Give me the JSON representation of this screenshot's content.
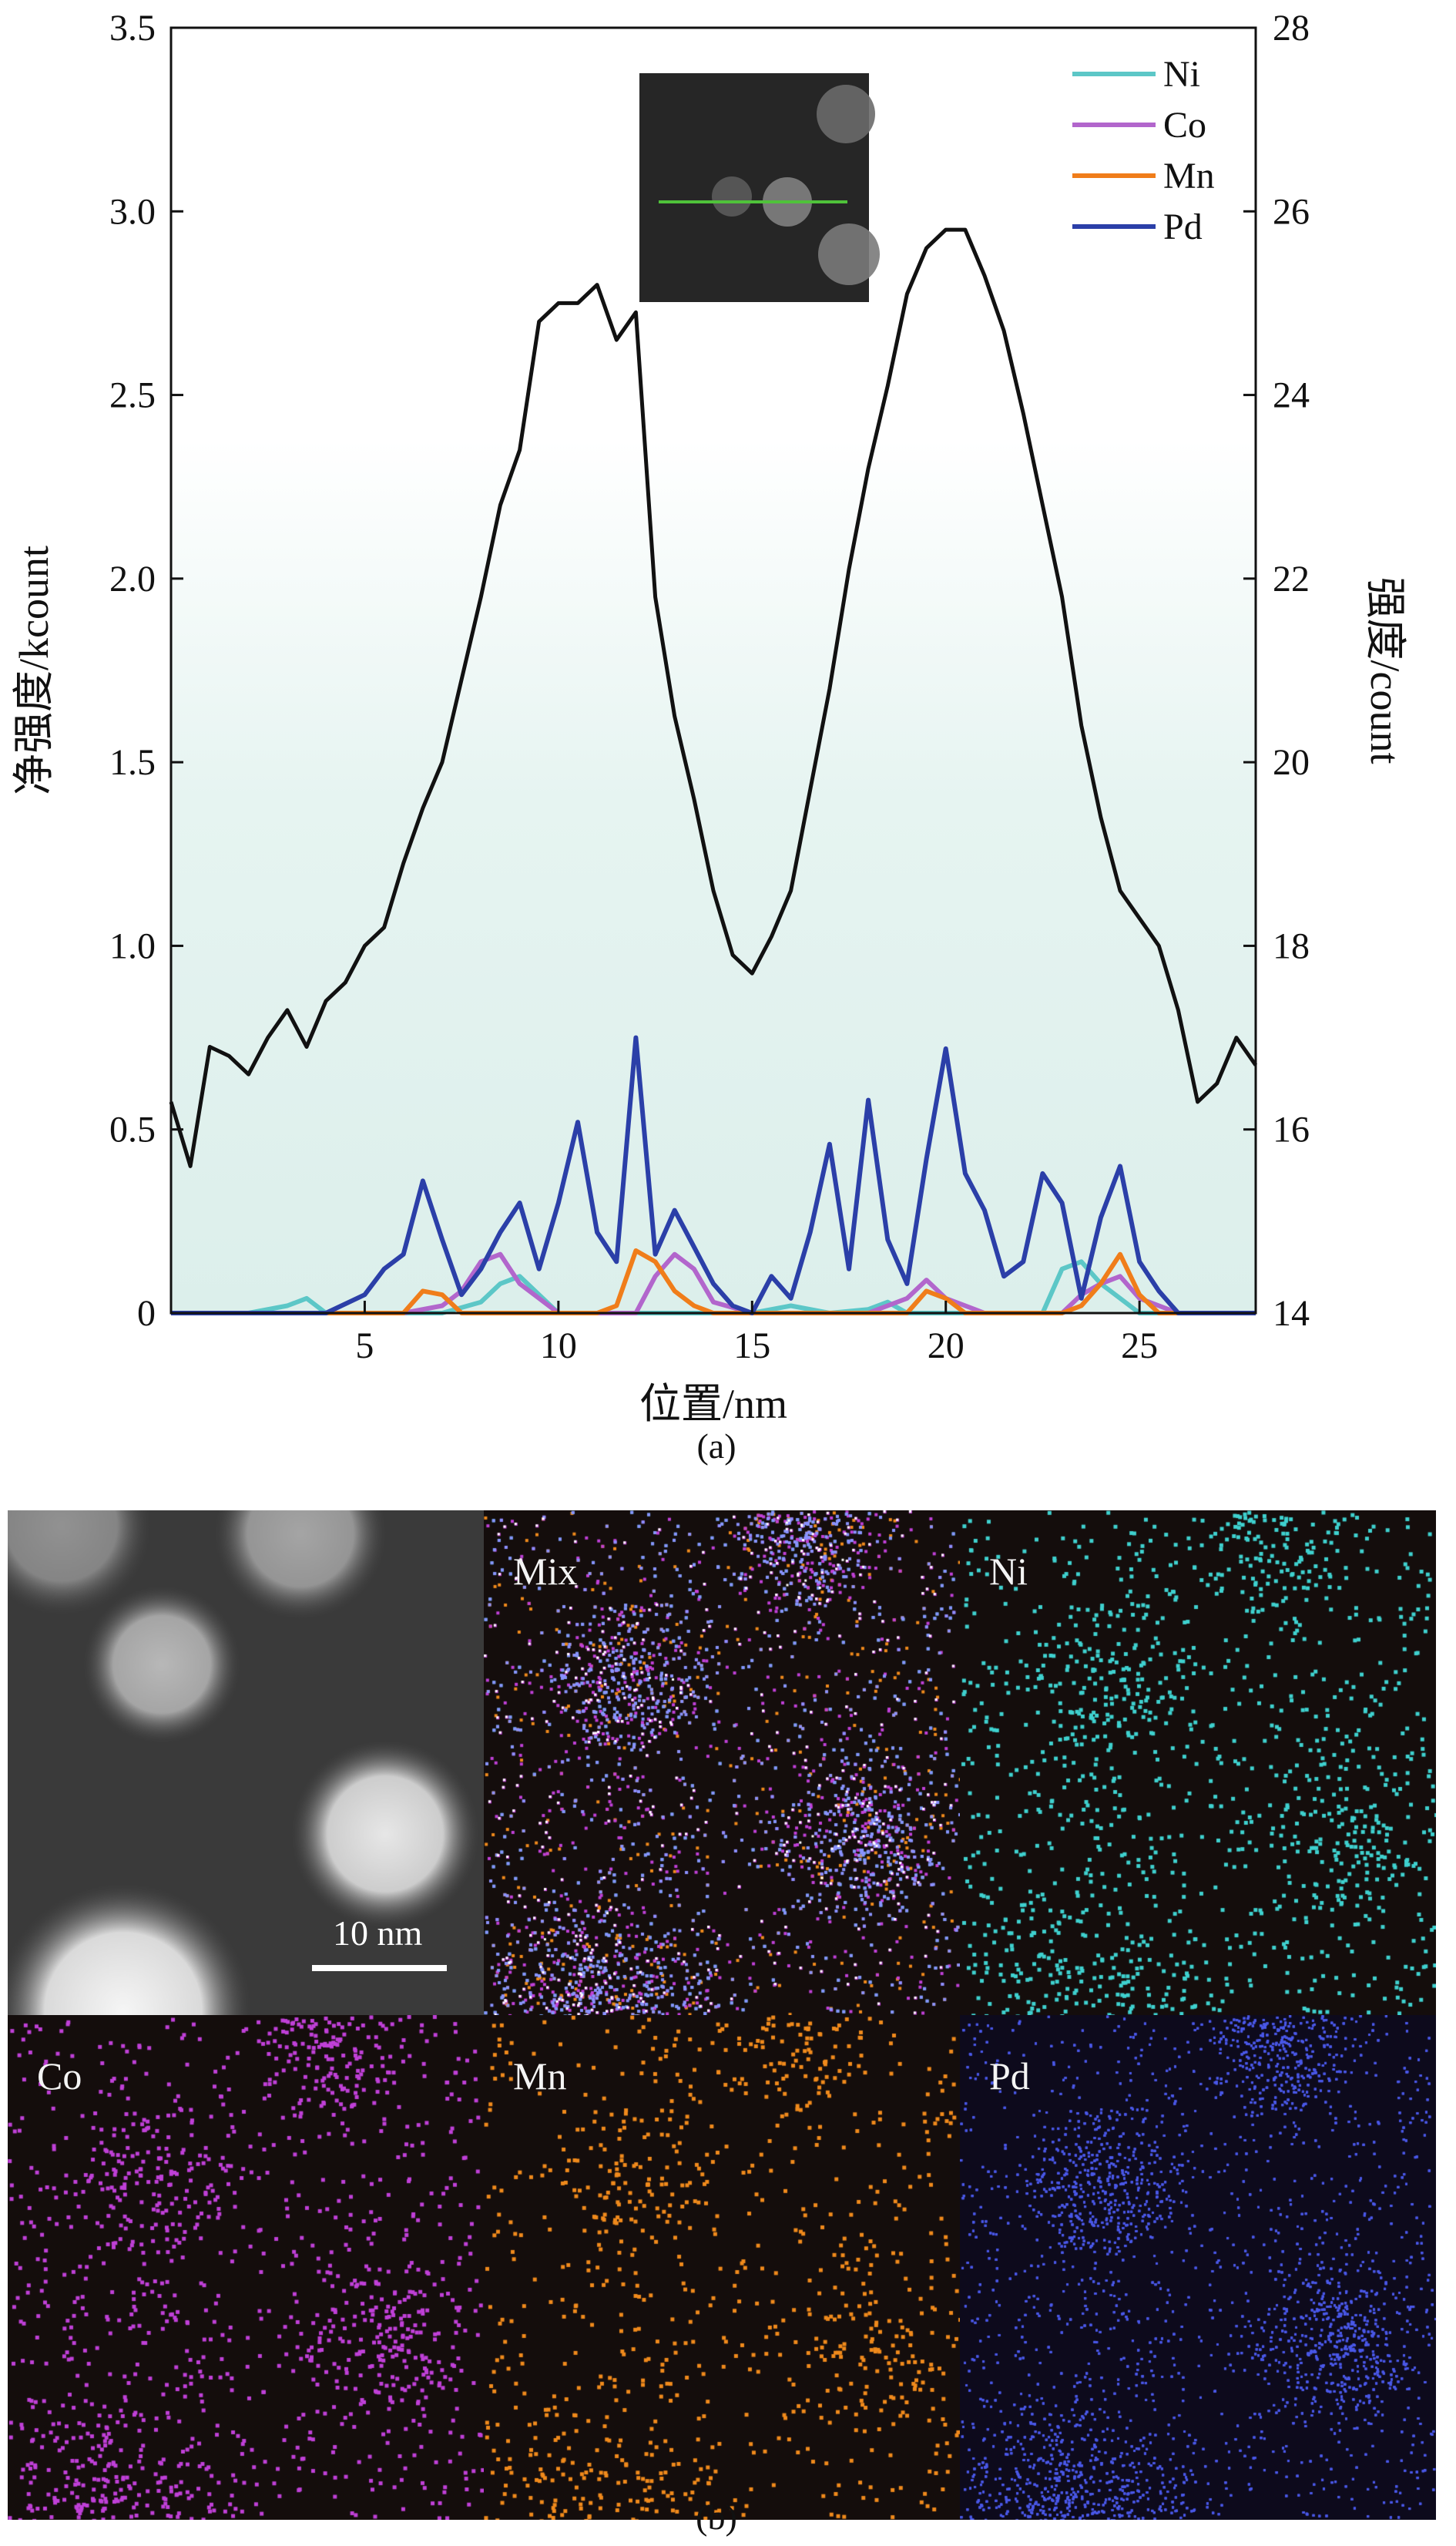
{
  "chart_data": {
    "type": "line",
    "xlabel": "位置/nm",
    "ylabel_left": "净强度/kcount",
    "ylabel_right": "强度/count",
    "xlim": [
      0,
      28
    ],
    "ylim_left": [
      0,
      3.5
    ],
    "ylim_right": [
      14,
      28
    ],
    "x_ticks": [
      "5",
      "10",
      "15",
      "20",
      "25"
    ],
    "x_tick_values": [
      5,
      10,
      15,
      20,
      25
    ],
    "y_ticks_left": [
      "0",
      "0.5",
      "1.0",
      "1.5",
      "2.0",
      "2.5",
      "3.0",
      "3.5"
    ],
    "y_tick_values_left": [
      0,
      0.5,
      1.0,
      1.5,
      2.0,
      2.5,
      3.0,
      3.5
    ],
    "y_ticks_right": [
      "14",
      "16",
      "18",
      "20",
      "22",
      "24",
      "26",
      "28"
    ],
    "y_tick_values_right": [
      14,
      16,
      18,
      20,
      22,
      24,
      26,
      28
    ],
    "legend_position": "top-right",
    "intensity_series": {
      "axis": "right",
      "color": "#111111",
      "x": [
        0,
        0.5,
        1,
        1.5,
        2,
        2.5,
        3,
        3.5,
        4,
        4.5,
        5,
        5.5,
        6,
        6.5,
        7,
        7.5,
        8,
        8.5,
        9,
        9.5,
        10,
        10.5,
        11,
        11.5,
        12,
        12.5,
        13,
        13.5,
        14,
        14.5,
        15,
        15.5,
        16,
        16.5,
        17,
        17.5,
        18,
        18.5,
        19,
        19.5,
        20,
        20.5,
        21,
        21.5,
        22,
        22.5,
        23,
        23.5,
        24,
        24.5,
        25,
        25.5,
        26,
        26.5,
        27,
        27.5,
        28
      ],
      "y": [
        16.3,
        15.6,
        16.9,
        16.8,
        16.6,
        17.0,
        17.3,
        16.9,
        17.4,
        17.6,
        18.0,
        18.2,
        18.9,
        19.5,
        20.0,
        20.9,
        21.8,
        22.8,
        23.4,
        24.8,
        25.0,
        25.0,
        25.2,
        24.6,
        24.9,
        21.8,
        20.5,
        19.6,
        18.6,
        17.9,
        17.7,
        18.1,
        18.6,
        19.7,
        20.8,
        22.1,
        23.2,
        24.1,
        25.1,
        25.6,
        25.8,
        25.8,
        25.3,
        24.7,
        23.8,
        22.8,
        21.8,
        20.4,
        19.4,
        18.6,
        18.3,
        18.0,
        17.3,
        16.3,
        16.5,
        17.0,
        16.7
      ]
    },
    "series": [
      {
        "name": "Ni",
        "color": "#5cc7c7",
        "axis": "left",
        "x": [
          0,
          2,
          3,
          3.5,
          4,
          5,
          6,
          7,
          8,
          8.5,
          9,
          9.5,
          10,
          11,
          12,
          13,
          14,
          15,
          16,
          17,
          18,
          18.5,
          19,
          20,
          21,
          22,
          22.5,
          23,
          23.5,
          24,
          24.5,
          25,
          26,
          28
        ],
        "values": [
          0,
          0,
          0.02,
          0.04,
          0,
          0,
          0,
          0,
          0.03,
          0.08,
          0.1,
          0.05,
          0,
          0,
          0,
          0,
          0,
          0,
          0.02,
          0,
          0.01,
          0.03,
          0,
          0,
          0,
          0,
          0,
          0.12,
          0.14,
          0.08,
          0.04,
          0,
          0,
          0
        ]
      },
      {
        "name": "Co",
        "color": "#b266cc",
        "axis": "left",
        "x": [
          0,
          5,
          6,
          7,
          7.5,
          8,
          8.5,
          9,
          9.5,
          10,
          11,
          12,
          12.5,
          13,
          13.5,
          14,
          15,
          16,
          17,
          18,
          19,
          19.5,
          20,
          21,
          22,
          23,
          23.5,
          24,
          24.5,
          25,
          26,
          28
        ],
        "values": [
          0,
          0,
          0,
          0.02,
          0.06,
          0.14,
          0.16,
          0.08,
          0.04,
          0,
          0,
          0,
          0.1,
          0.16,
          0.12,
          0.03,
          0,
          0,
          0,
          0,
          0.04,
          0.09,
          0.04,
          0,
          0,
          0,
          0.05,
          0.08,
          0.1,
          0.04,
          0,
          0
        ]
      },
      {
        "name": "Mn",
        "color": "#f07d1a",
        "axis": "left",
        "x": [
          0,
          6,
          6.5,
          7,
          7.5,
          8,
          11,
          11.5,
          12,
          12.5,
          13,
          13.5,
          14,
          17,
          19,
          19.5,
          20,
          20.5,
          23,
          23.5,
          24,
          24.5,
          25,
          25.5,
          28
        ],
        "values": [
          0,
          0,
          0.06,
          0.05,
          0,
          0,
          0,
          0.02,
          0.17,
          0.14,
          0.06,
          0.02,
          0,
          0,
          0,
          0.06,
          0.04,
          0,
          0,
          0.02,
          0.08,
          0.16,
          0.05,
          0,
          0
        ]
      },
      {
        "name": "Pd",
        "color": "#2b3fa8",
        "axis": "left",
        "x": [
          0,
          4,
          5,
          5.5,
          6,
          6.5,
          7,
          7.5,
          8,
          8.5,
          9,
          9.5,
          10,
          10.5,
          11,
          11.5,
          12,
          12.5,
          13,
          13.5,
          14,
          14.5,
          15,
          15.5,
          16,
          16.5,
          17,
          17.5,
          18,
          18.5,
          19,
          19.5,
          20,
          20.5,
          21,
          21.5,
          22,
          22.5,
          23,
          23.5,
          24,
          24.5,
          25,
          25.5,
          26,
          28
        ],
        "values": [
          0,
          0,
          0.05,
          0.12,
          0.16,
          0.36,
          0.2,
          0.05,
          0.12,
          0.22,
          0.3,
          0.12,
          0.3,
          0.52,
          0.22,
          0.14,
          0.75,
          0.16,
          0.28,
          0.18,
          0.08,
          0.02,
          0,
          0.1,
          0.04,
          0.22,
          0.46,
          0.12,
          0.58,
          0.2,
          0.08,
          0.42,
          0.72,
          0.38,
          0.28,
          0.1,
          0.14,
          0.38,
          0.3,
          0.04,
          0.26,
          0.4,
          0.14,
          0.06,
          0,
          0
        ]
      }
    ]
  },
  "captions": {
    "a": "(a)",
    "b": "(b)"
  },
  "panels": {
    "scale_bar": "10 nm",
    "labels": [
      "Mix",
      "Ni",
      "Co",
      "Mn",
      "Pd"
    ]
  }
}
